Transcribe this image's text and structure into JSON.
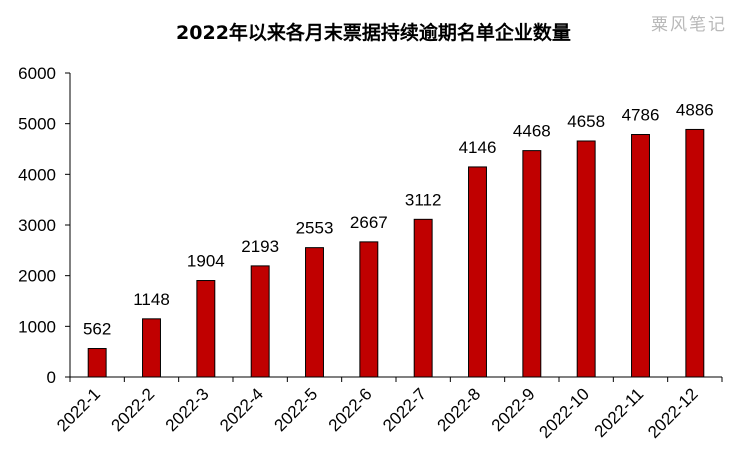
{
  "watermark": "粟风笔记",
  "chart_data": {
    "type": "bar",
    "title": "2022年以来各月末票据持续逾期名单企业数量",
    "xlabel": "",
    "ylabel": "",
    "categories": [
      "2022-1",
      "2022-2",
      "2022-3",
      "2022-4",
      "2022-5",
      "2022-6",
      "2022-7",
      "2022-8",
      "2022-9",
      "2022-10",
      "2022-11",
      "2022-12"
    ],
    "values": [
      562,
      1148,
      1904,
      2193,
      2553,
      2667,
      3112,
      4146,
      4468,
      4658,
      4786,
      4886
    ],
    "ylim": [
      0,
      6000
    ],
    "yticks": [
      0,
      1000,
      2000,
      3000,
      4000,
      5000,
      6000
    ],
    "bar_color": "#C00000",
    "bar_edge_color": "#000000",
    "grid": false,
    "legend": "none",
    "data_labels": true
  }
}
